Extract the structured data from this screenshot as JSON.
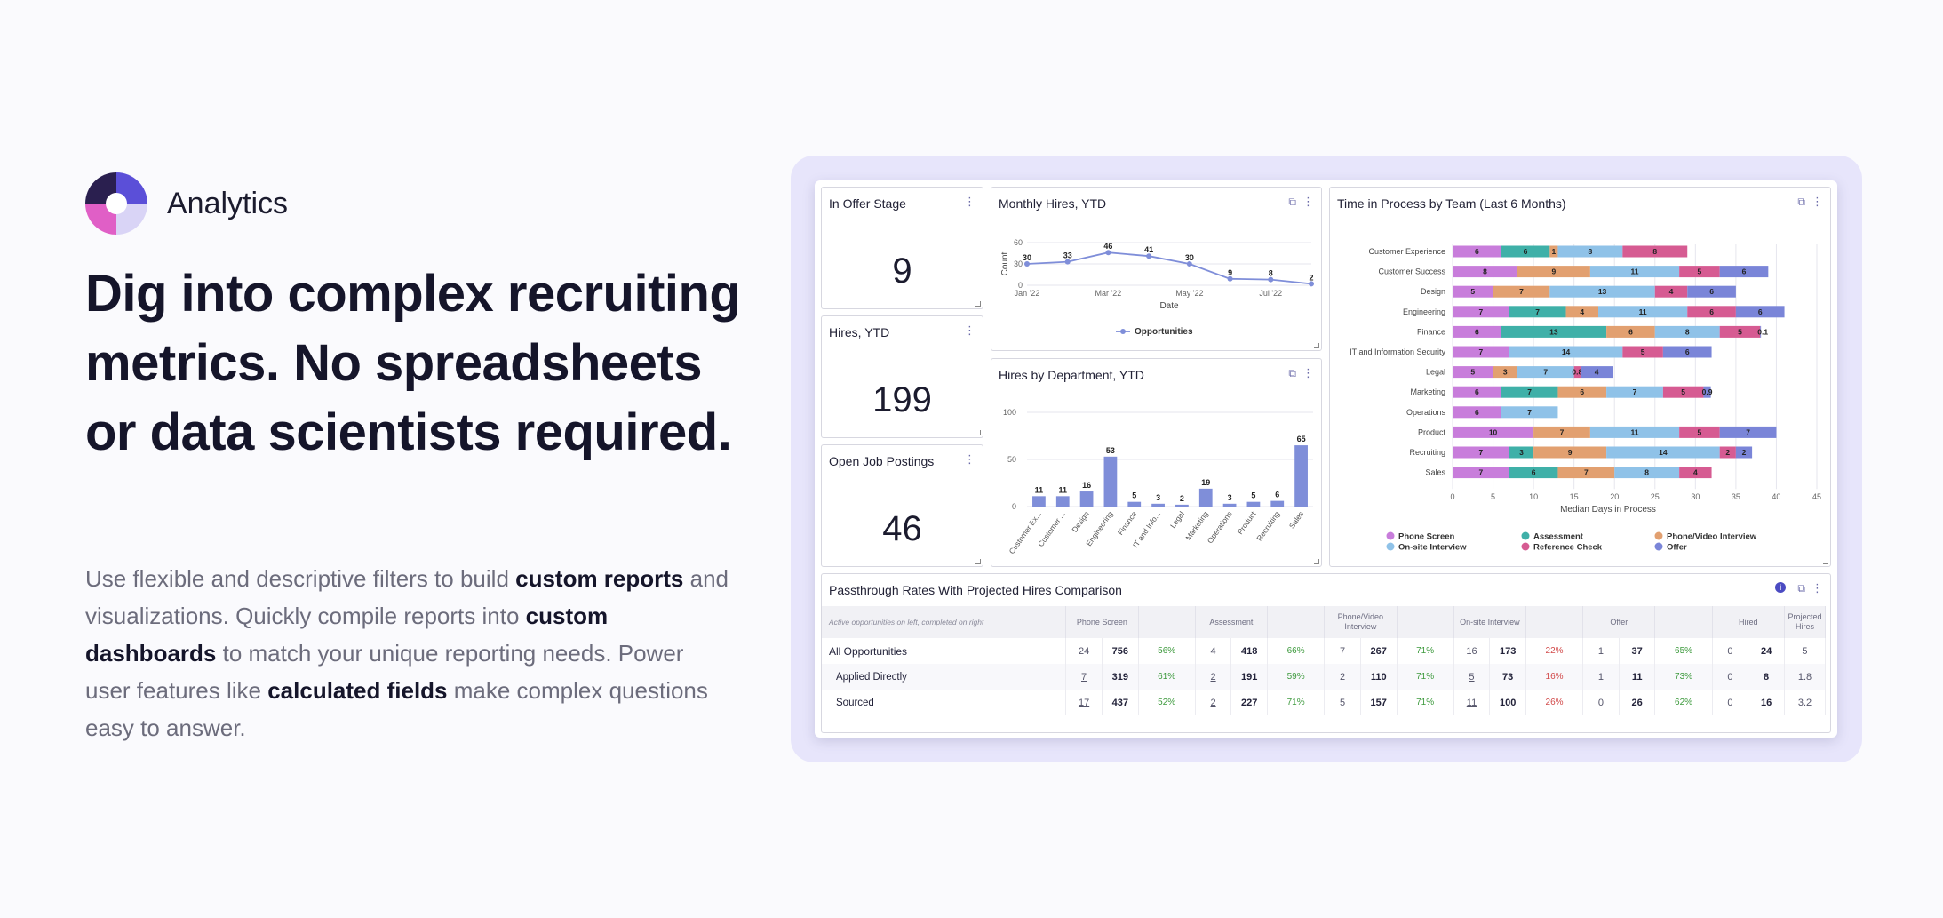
{
  "brand": {
    "name": "Analytics"
  },
  "headline": "Dig into complex recruiting metrics. No spreadsheets or data scientists required.",
  "body": {
    "p1": "Use flexible and descriptive filters to build ",
    "b1": "custom reports",
    "p2": " and visualizations. Quickly compile reports into ",
    "b2": "custom dashboards",
    "p3": " to match your unique reporting needs. Power user features like ",
    "b3": "calculated fields",
    "p4": " make complex questions easy to answer."
  },
  "colors": {
    "logo_dark": "#2a1f4f",
    "logo_purple": "#5b4fd8",
    "logo_pink": "#e05fc6",
    "logo_lilac": "#d9d4f6",
    "phone_screen": "#c87ddb",
    "assessment": "#3fb0a8",
    "phone_video": "#e2a070",
    "onsite": "#8fc2e8",
    "reference": "#d65b92",
    "offer": "#7a85d8"
  },
  "kpis": [
    {
      "title": "In Offer Stage",
      "value": "9"
    },
    {
      "title": "Hires, YTD",
      "value": "199"
    },
    {
      "title": "Open Job Postings",
      "value": "46"
    }
  ],
  "monthly_hires": {
    "title": "Monthly Hires, YTD",
    "ylabel": "Count",
    "xlabel": "Date",
    "y_ticks": [
      "60",
      "30",
      "0"
    ],
    "x_ticks": [
      "Jan '22",
      "Mar '22",
      "May '22",
      "Jul '22"
    ],
    "legend": "Opportunities"
  },
  "hires_by_dept": {
    "title": "Hires by Department, YTD",
    "y_ticks": [
      "100",
      "50",
      "0"
    ],
    "tick_labels": [
      "Customer Ex...",
      "Customer ...",
      "Design",
      "Engineering",
      "Finance",
      "IT and Info...",
      "Legal",
      "Marketing",
      "Operations",
      "Product",
      "Recruiting",
      "Sales"
    ]
  },
  "time_in_process": {
    "title": "Time in Process by Team (Last 6 Months)",
    "xlabel": "Median Days in Process",
    "x_ticks": [
      "0",
      "5",
      "10",
      "15",
      "20",
      "25",
      "30",
      "35",
      "40",
      "45"
    ],
    "legend": [
      "Phone Screen",
      "Assessment",
      "Phone/Video Interview",
      "On-site Interview",
      "Reference Check",
      "Offer"
    ]
  },
  "chart_data": [
    {
      "type": "line",
      "x": [
        "Jan '22",
        "Feb '22",
        "Mar '22",
        "Apr '22",
        "May '22",
        "Jun '22",
        "Jul '22",
        "Aug '22"
      ],
      "series": [
        {
          "name": "Opportunities",
          "values": [
            30,
            33,
            46,
            41,
            30,
            9,
            8,
            2
          ]
        }
      ],
      "title": "Monthly Hires, YTD",
      "xlabel": "Date",
      "ylabel": "Count",
      "ylim": [
        0,
        60
      ]
    },
    {
      "type": "bar",
      "categories": [
        "Customer Ex...",
        "Customer ...",
        "Design",
        "Engineering",
        "Finance",
        "IT and Info...",
        "Legal",
        "Marketing",
        "Operations",
        "Product",
        "Recruiting",
        "Sales"
      ],
      "values": [
        11,
        11,
        16,
        53,
        5,
        3,
        2,
        19,
        3,
        5,
        6,
        65
      ],
      "title": "Hires by Department, YTD",
      "ylim": [
        0,
        100
      ]
    },
    {
      "type": "bar",
      "orientation": "horizontal-stacked",
      "title": "Time in Process by Team (Last 6 Months)",
      "xlabel": "Median Days in Process",
      "xlim": [
        0,
        45
      ],
      "categories": [
        "Customer Experience",
        "Customer Success",
        "Design",
        "Engineering",
        "Finance",
        "IT and Information Security",
        "Legal",
        "Marketing",
        "Operations",
        "Product",
        "Recruiting",
        "Sales"
      ],
      "series": [
        {
          "name": "Phone Screen",
          "values": [
            6,
            8,
            5,
            7,
            6,
            7,
            5,
            6,
            6,
            10,
            7,
            7
          ]
        },
        {
          "name": "Assessment",
          "values": [
            6,
            0,
            0,
            7,
            13,
            0,
            0,
            7,
            0,
            0,
            3,
            6
          ]
        },
        {
          "name": "Phone/Video Interview",
          "values": [
            1,
            9,
            7,
            4,
            6,
            0,
            3,
            6,
            0,
            7,
            9,
            7
          ]
        },
        {
          "name": "On-site Interview",
          "values": [
            8,
            11,
            13,
            11,
            8,
            14,
            7,
            7,
            7,
            11,
            14,
            8
          ]
        },
        {
          "name": "Reference Check",
          "values": [
            8,
            5,
            4,
            6,
            5,
            5,
            0.8,
            5,
            0,
            5,
            2,
            4
          ]
        },
        {
          "name": "Offer",
          "values": [
            0,
            6,
            6,
            6,
            0.1,
            6,
            4,
            0.9,
            0,
            7,
            2,
            0
          ]
        }
      ]
    }
  ],
  "passthrough": {
    "title": "Passthrough Rates With Projected Hires Comparison",
    "header_note": "Active opportunities on left, completed on right",
    "stages": [
      "Phone Screen",
      "Assessment",
      "Phone/Video Interview",
      "On-site Interview",
      "Offer",
      "Hired",
      "Projected Hires"
    ],
    "rows": [
      {
        "label": "All Opportunities",
        "c": [
          "24",
          "756",
          "56%",
          "4",
          "418",
          "66%",
          "7",
          "267",
          "71%",
          "16",
          "173",
          "22%",
          "1",
          "37",
          "65%",
          "0",
          "24",
          "5"
        ]
      },
      {
        "label": "Applied Directly",
        "c": [
          "7",
          "319",
          "61%",
          "2",
          "191",
          "59%",
          "2",
          "110",
          "71%",
          "5",
          "73",
          "16%",
          "1",
          "11",
          "73%",
          "0",
          "8",
          "1.8"
        ]
      },
      {
        "label": "Sourced",
        "c": [
          "17",
          "437",
          "52%",
          "2",
          "227",
          "71%",
          "5",
          "157",
          "71%",
          "11",
          "100",
          "26%",
          "0",
          "26",
          "62%",
          "0",
          "16",
          "3.2"
        ]
      }
    ]
  }
}
